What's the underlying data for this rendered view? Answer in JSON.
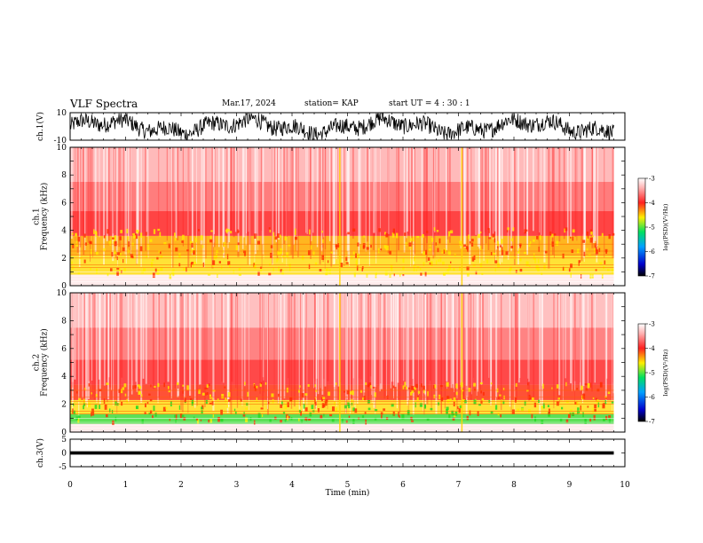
{
  "header": {
    "title": "VLF Spectra",
    "date": "Mar.17, 2024",
    "station": "station= KAP",
    "start_ut": "start  UT =   4 : 30 : 1"
  },
  "colors": {
    "spectrogram_low": "#ffffff",
    "spectrogram_mid": "#ff2a2a",
    "spectrogram_high": "#ffe600",
    "spectrogram_peak": "#22dd22",
    "waveform": "#000000"
  },
  "chart_data": [
    {
      "type": "line",
      "panel": "ch1-waveform",
      "ylabel": "ch.1(V)",
      "yticks": [
        "10",
        "-10"
      ],
      "ylim": [
        -10,
        10
      ],
      "x": [
        0,
        1,
        2,
        3,
        4,
        5,
        6,
        7,
        8,
        9,
        9.8
      ],
      "series": [
        {
          "values": [
            1.5,
            -2,
            0.5,
            -1,
            2.5,
            -0.5,
            1,
            -2.5,
            0,
            1.5,
            -1
          ]
        }
      ]
    },
    {
      "type": "heatmap",
      "panel": "ch1-spectrogram",
      "ylabel": "ch.1\nFrequency (kHz)",
      "xlim": [
        0,
        10
      ],
      "ylim": [
        0,
        10
      ],
      "yticks": [
        "0",
        "2",
        "4",
        "6",
        "8",
        "10"
      ],
      "data_end_min": 9.8,
      "colorbar": {
        "label": "log(PSD)(V²/Hz)",
        "ticks": [
          "-3",
          "-4",
          "-5",
          "-6",
          "-7"
        ],
        "range": [
          -7,
          -3
        ]
      }
    },
    {
      "type": "heatmap",
      "panel": "ch2-spectrogram",
      "ylabel": "ch.2\nFrequency (kHz)",
      "xlim": [
        0,
        10
      ],
      "ylim": [
        0,
        10
      ],
      "yticks": [
        "0",
        "2",
        "4",
        "6",
        "8",
        "10"
      ],
      "data_end_min": 9.8,
      "colorbar": {
        "label": "log(PSD)(V²/Hz)",
        "ticks": [
          "-3",
          "-4",
          "-5",
          "-6",
          "-7"
        ],
        "range": [
          -7,
          -3
        ]
      }
    },
    {
      "type": "line",
      "panel": "ch3-waveform",
      "ylabel": "ch.3(V)",
      "yticks": [
        "5",
        "0",
        "-5"
      ],
      "ylim": [
        -5,
        5
      ],
      "x": [
        0,
        9.8
      ],
      "series": [
        {
          "values": [
            0,
            0
          ]
        }
      ]
    }
  ],
  "xaxis": {
    "label": "Time  (min)",
    "ticks": [
      "0",
      "1",
      "2",
      "3",
      "4",
      "5",
      "6",
      "7",
      "8",
      "9",
      "10"
    ]
  }
}
